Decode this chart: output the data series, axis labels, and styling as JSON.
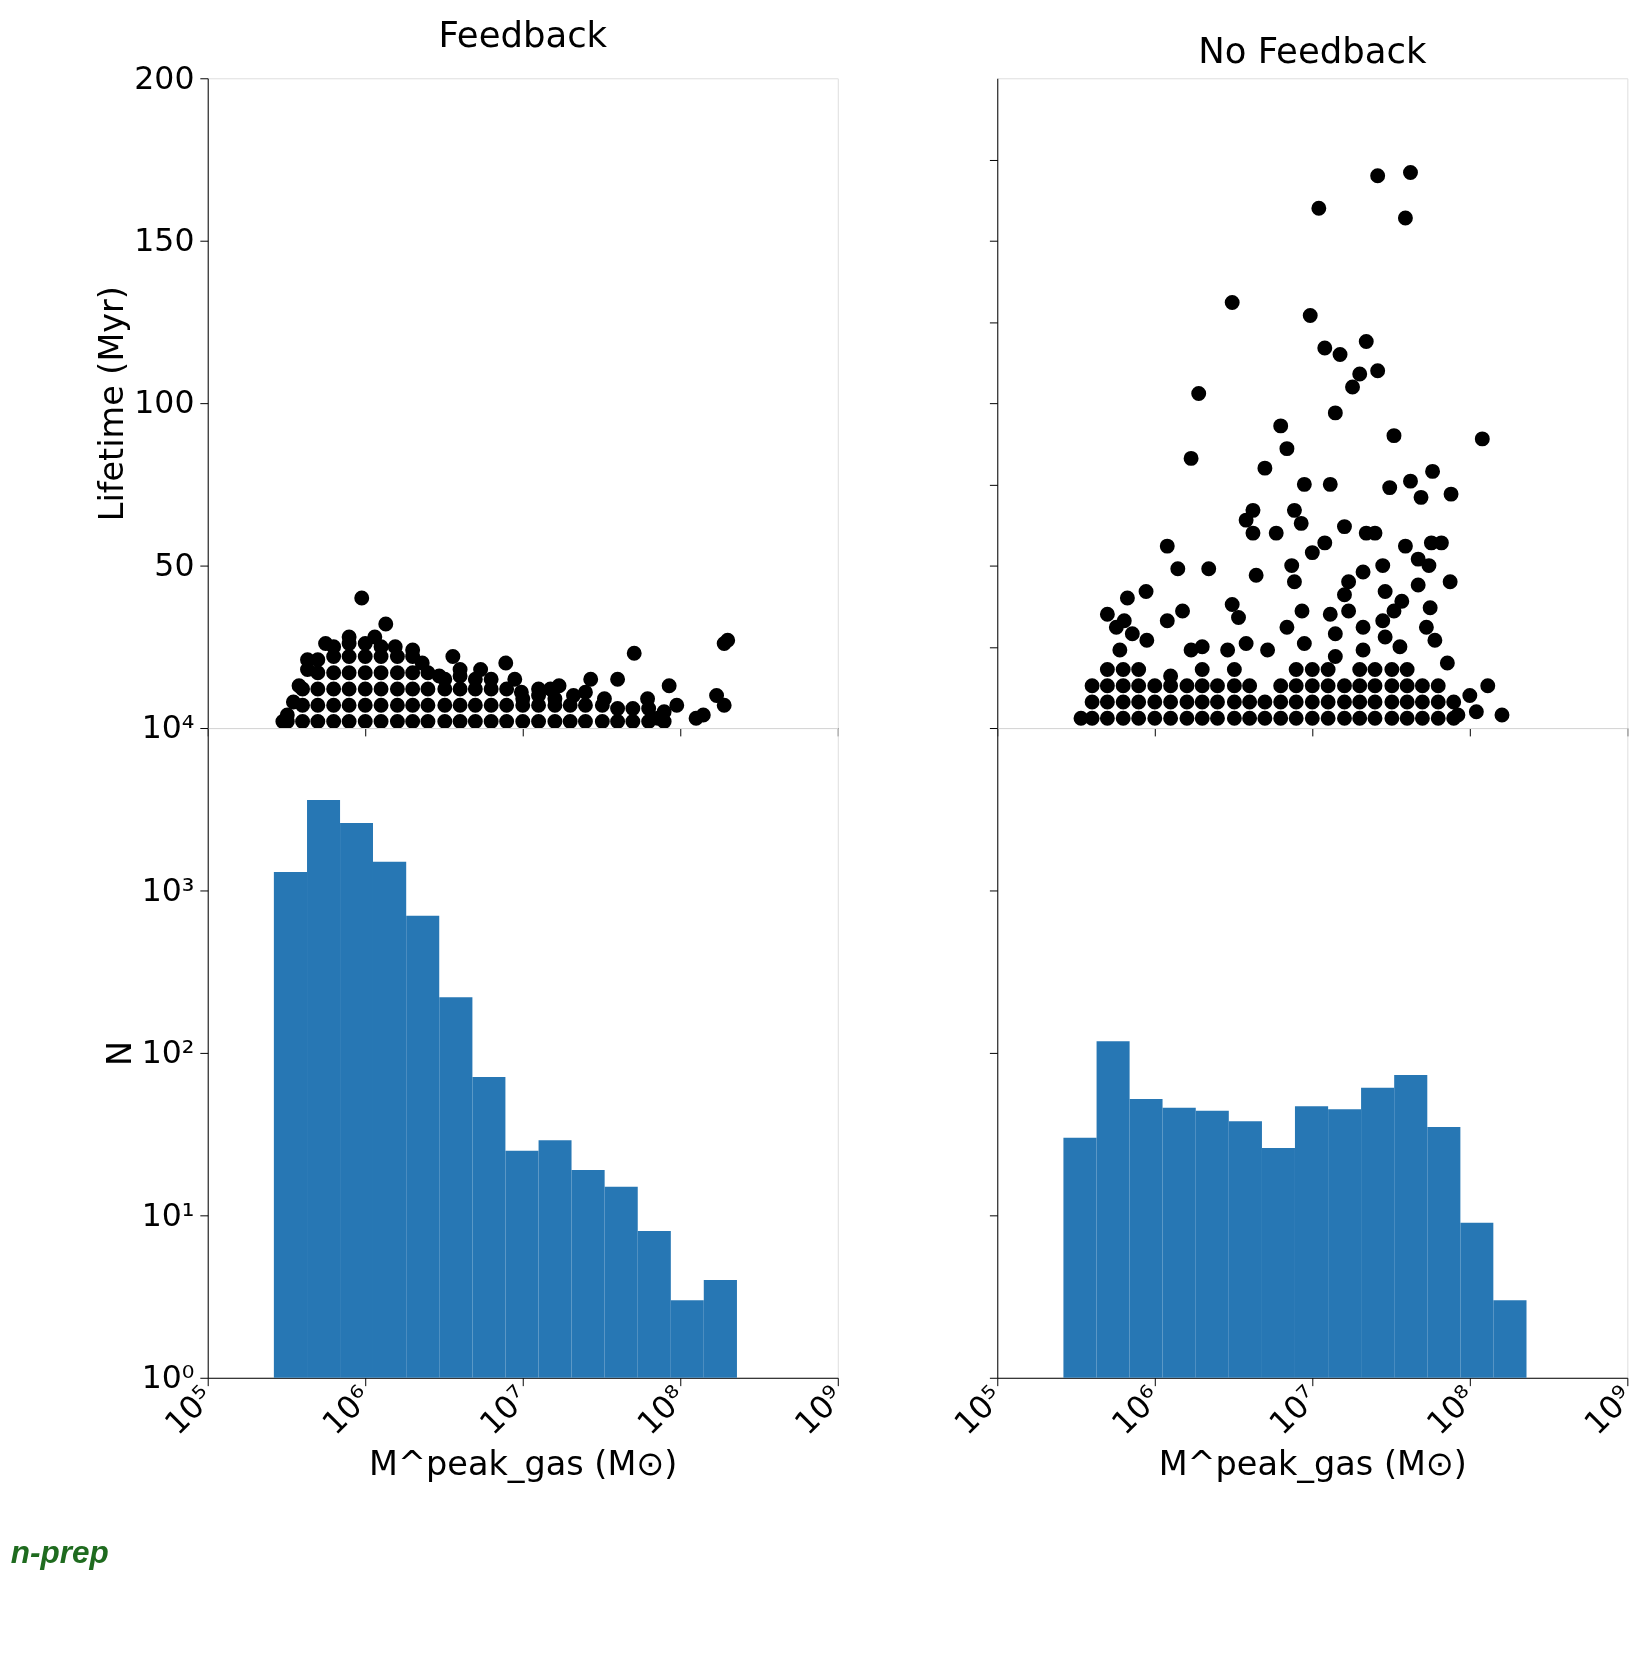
{
  "chart_data": [
    {
      "type": "scatter",
      "title": "Feedback",
      "ylabel": "Lifetime (Myr)",
      "log": "x",
      "xlim": [
        100000.0,
        1000000000.0
      ],
      "ylim": [
        0,
        200
      ],
      "tick_labels": "y",
      "xticks": [
        {
          "value": 100000.0,
          "label": null
        },
        {
          "value": 1000000.0,
          "label": null
        },
        {
          "value": 10000000.0,
          "label": null
        },
        {
          "value": 100000000.0,
          "label": null
        },
        {
          "value": 1000000000.0,
          "label": null
        }
      ],
      "yticks": [
        50,
        100,
        150,
        200
      ],
      "grid": false,
      "series": [
        {
          "color": "#000000",
          "x": [
            320000.0,
            320000.0,
            400000.0,
            400000.0,
            400000.0,
            500000.0,
            500000.0,
            500000.0,
            500000.0,
            500000.0,
            630000.0,
            630000.0,
            630000.0,
            630000.0,
            630000.0,
            630000.0,
            790000.0,
            790000.0,
            790000.0,
            790000.0,
            790000.0,
            790000.0,
            1000000.0,
            1000000.0,
            1000000.0,
            1000000.0,
            1000000.0,
            1000000.0,
            1260000.0,
            1260000.0,
            1260000.0,
            1260000.0,
            1260000.0,
            1260000.0,
            1600000.0,
            1600000.0,
            1600000.0,
            1600000.0,
            1600000.0,
            2000000.0,
            2000000.0,
            2000000.0,
            2000000.0,
            2000000.0,
            2500000.0,
            2500000.0,
            2500000.0,
            2500000.0,
            3200000.0,
            3200000.0,
            3200000.0,
            3200000.0,
            4000000.0,
            4000000.0,
            4000000.0,
            4000000.0,
            5000000.0,
            5000000.0,
            5000000.0,
            5000000.0,
            6300000.0,
            6300000.0,
            6300000.0,
            7900000.0,
            7900000.0,
            7900000.0,
            10000000.0,
            10000000.0,
            10000000.0,
            12600000.0,
            12600000.0,
            12600000.0,
            16000000.0,
            16000000.0,
            16000000.0,
            20000000.0,
            20000000.0,
            25000000.0,
            25000000.0,
            32000000.0,
            32000000.0,
            40000000.0,
            40000000.0,
            50000000.0,
            50000000.0,
            63000000.0,
            63000000.0,
            79000000.0,
            79000000.0,
            950000.0,
            1350000.0,
            200000000.0,
            190000000.0,
            51000000.0,
            3600000.0,
            7800000.0,
            5400000.0,
            27000000.0,
            40000000.0,
            85000000.0,
            170000000.0,
            190000000.0,
            140000000.0,
            12600000.0,
            17000000.0,
            8900000.0,
            300000.0,
            350000.0,
            380000.0,
            430000.0,
            430000.0,
            560000.0,
            790000.0,
            1150000.0,
            1550000.0,
            2000000.0,
            2300000.0,
            2950000.0,
            4000000.0,
            6300000.0,
            9800000.0,
            15000000.0,
            21000000.0,
            25000000.0,
            33000000.0,
            62000000.0,
            95000000.0,
            72000000.0,
            126000000.0
          ],
          "values": [
            2,
            4,
            2,
            7,
            12,
            2,
            7,
            12,
            17,
            21,
            2,
            7,
            12,
            17,
            22,
            25,
            2,
            7,
            12,
            17,
            22,
            26,
            2,
            7,
            12,
            17,
            22,
            26,
            2,
            7,
            12,
            17,
            22,
            25,
            2,
            7,
            12,
            17,
            22,
            2,
            7,
            12,
            17,
            22,
            2,
            7,
            12,
            17,
            2,
            7,
            12,
            15,
            2,
            7,
            12,
            16,
            2,
            7,
            12,
            15,
            2,
            7,
            12,
            2,
            7,
            12,
            2,
            7,
            9,
            2,
            7,
            10,
            2,
            7,
            9,
            2,
            7,
            2,
            7,
            2,
            7,
            2,
            6,
            2,
            6,
            2,
            6,
            2,
            5,
            40,
            32,
            27,
            26,
            23,
            22,
            20,
            18,
            15,
            15,
            13,
            10,
            7,
            4,
            12,
            13,
            15,
            2,
            8,
            13,
            18,
            21,
            26,
            28,
            28,
            25,
            24,
            20,
            16,
            18,
            15,
            11,
            12,
            10,
            11,
            9,
            9,
            7,
            3,
            3
          ]
        }
      ]
    },
    {
      "type": "scatter",
      "title": "No Feedback",
      "log": "x",
      "xlim": [
        100000.0,
        1000000000.0
      ],
      "ylim": [
        0,
        200
      ],
      "tick_labels": false,
      "xticks": [
        {
          "value": 100000.0,
          "label": null
        },
        {
          "value": 1000000.0,
          "label": null
        },
        {
          "value": 10000000.0,
          "label": null
        },
        {
          "value": 100000000.0,
          "label": null
        },
        {
          "value": 1000000000.0,
          "label": null
        }
      ],
      "yticks": [
        {
          "value": 25,
          "label": null
        },
        {
          "value": 50,
          "label": null
        },
        {
          "value": 75,
          "label": null
        },
        {
          "value": 100,
          "label": null
        },
        {
          "value": 125,
          "label": null
        },
        {
          "value": 150,
          "label": null
        },
        {
          "value": 175,
          "label": null
        }
      ],
      "grid": false,
      "series": [
        {
          "color": "#000000",
          "x": [
            400000.0,
            400000.0,
            400000.0,
            500000.0,
            500000.0,
            500000.0,
            500000.0,
            630000.0,
            630000.0,
            630000.0,
            630000.0,
            790000.0,
            790000.0,
            790000.0,
            790000.0,
            1000000.0,
            1000000.0,
            1000000.0,
            1260000.0,
            1260000.0,
            1260000.0,
            1260000.0,
            1600000.0,
            1600000.0,
            1600000.0,
            2000000.0,
            2000000.0,
            2000000.0,
            2000000.0,
            2500000.0,
            2500000.0,
            2500000.0,
            3200000.0,
            3200000.0,
            3200000.0,
            3200000.0,
            4000000.0,
            4000000.0,
            4000000.0,
            5000000.0,
            5000000.0,
            6300000.0,
            6300000.0,
            6300000.0,
            7900000.0,
            7900000.0,
            7900000.0,
            7900000.0,
            10000000.0,
            10000000.0,
            10000000.0,
            10000000.0,
            12600000.0,
            12600000.0,
            12600000.0,
            12600000.0,
            16000000.0,
            16000000.0,
            16000000.0,
            20000000.0,
            20000000.0,
            20000000.0,
            20000000.0,
            25000000.0,
            25000000.0,
            25000000.0,
            25000000.0,
            32000000.0,
            32000000.0,
            32000000.0,
            32000000.0,
            40000000.0,
            40000000.0,
            40000000.0,
            40000000.0,
            50000000.0,
            50000000.0,
            50000000.0,
            63000000.0,
            63000000.0,
            63000000.0,
            79000000.0,
            79000000.0,
            26000000.0,
            42000000.0,
            11000000.0,
            39000000.0,
            3100000.0,
            9700000.0,
            12000000.0,
            15000000.0,
            22000000.0,
            20000000.0,
            26000000.0,
            18000000.0,
            1900000.0,
            14000000.0,
            6300000.0,
            33000000.0,
            120000000.0,
            6900000.0,
            1700000.0,
            5000000.0,
            8900000.0,
            13000000.0,
            42000000.0,
            58000000.0,
            31000000.0,
            49000000.0,
            76000000.0,
            4200000.0,
            7700000.0,
            3800000.0,
            8500000.0,
            4200000.0,
            5900000.0,
            16000000.0,
            22000000.0,
            25000000.0,
            12000000.0,
            39000000.0,
            57000000.0,
            66000000.0,
            10000000.0,
            1200000.0,
            1400000.0,
            2200000.0,
            4400000.0,
            7400000.0,
            7700000.0,
            21000000.0,
            28000000.0,
            47000000.0,
            55000000.0,
            47000000.0,
            75000000.0,
            17000000.0,
            16000000.0,
            29000000.0,
            880000.0,
            670000.0,
            500000.0,
            1200000.0,
            1500000.0,
            3100000.0,
            3400000.0,
            6900000.0,
            8600000.0,
            13000000.0,
            17000000.0,
            21000000.0,
            37000000.0,
            56000000.0,
            53000000.0,
            60000000.0,
            28000000.0,
            33000000.0,
            640000.0,
            570000.0,
            720000.0,
            890000.0,
            600000.0,
            1700000.0,
            2000000.0,
            2900000.0,
            3800000.0,
            5200000.0,
            14000000.0,
            14000000.0,
            8900000.0,
            29000000.0,
            36000000.0,
            21000000.0,
            72000000.0,
            130000000.0,
            100000000.0,
            160000000.0,
            84000000.0,
            110000000.0,
            340000.0
          ],
          "values": [
            3,
            8,
            13,
            3,
            8,
            13,
            18,
            3,
            8,
            13,
            18,
            3,
            8,
            13,
            18,
            3,
            8,
            13,
            3,
            8,
            13,
            16,
            3,
            8,
            13,
            3,
            8,
            13,
            18,
            3,
            8,
            13,
            3,
            8,
            13,
            18,
            3,
            8,
            13,
            3,
            8,
            3,
            8,
            13,
            3,
            8,
            13,
            18,
            3,
            8,
            13,
            18,
            3,
            8,
            13,
            18,
            3,
            8,
            13,
            3,
            8,
            13,
            18,
            3,
            8,
            13,
            18,
            3,
            8,
            13,
            18,
            3,
            8,
            13,
            18,
            3,
            8,
            13,
            3,
            8,
            13,
            3,
            8,
            170,
            171,
            160,
            157,
            131,
            127,
            117,
            115,
            119,
            109,
            110,
            105,
            103,
            97,
            93,
            90,
            89,
            86,
            83,
            80,
            75,
            75,
            76,
            79,
            74,
            71,
            72,
            67,
            67,
            64,
            63,
            60,
            60,
            62,
            60,
            60,
            57,
            56,
            57,
            57,
            54,
            56,
            49,
            49,
            47,
            50,
            45,
            48,
            50,
            52,
            50,
            44,
            45,
            45,
            41,
            42,
            42,
            40,
            35,
            33,
            36,
            38,
            34,
            31,
            36,
            35,
            36,
            31,
            39,
            37,
            31,
            27,
            33,
            36,
            33,
            31,
            29,
            27,
            24,
            24,
            25,
            24,
            26,
            24,
            29,
            22,
            26,
            28,
            25,
            24,
            20,
            13,
            10,
            4,
            4,
            5,
            3
          ]
        }
      ]
    },
    {
      "type": "histogram",
      "ylabel": "N",
      "xlabel": "M^peak_gas (M⊙)",
      "log": "xy",
      "xlim": [
        100000.0,
        1000000000.0
      ],
      "ylim": [
        1,
        10000
      ],
      "color": "#2777b4",
      "xticks": [
        {
          "value": 100000.0,
          "label": "10⁵"
        },
        {
          "value": 1000000.0,
          "label": "10⁶"
        },
        {
          "value": 10000000.0,
          "label": "10⁷"
        },
        {
          "value": 100000000.0,
          "label": "10⁸"
        },
        {
          "value": 1000000000.0,
          "label": "10⁹"
        }
      ],
      "yticks": [
        {
          "value": 1,
          "label": "10⁰"
        },
        {
          "value": 10,
          "label": "10¹"
        },
        {
          "value": 100,
          "label": "10²"
        },
        {
          "value": 1000,
          "label": "10³"
        },
        {
          "value": 10000,
          "label": "10⁴"
        }
      ],
      "grid": false,
      "bins": [
        263000.0,
        427000.0,
        692000.0,
        1120000.0,
        1820000.0,
        2950000.0,
        4790000.0,
        7760000.0,
        12600000.0,
        20400000.0,
        33100000.0,
        53700000.0,
        87100000.0,
        141000000.0,
        229000000.0
      ],
      "values": [
        1300,
        3600,
        2600,
        1500,
        700,
        220,
        71,
        25,
        29,
        19,
        15,
        8,
        3,
        4
      ],
      "annotations": [
        "n-prep"
      ]
    },
    {
      "type": "histogram",
      "xlabel": "M^peak_gas (M⊙)",
      "log": "xy",
      "xlim": [
        100000.0,
        1000000000.0
      ],
      "ylim": [
        1,
        10000
      ],
      "color": "#2777b4",
      "tick_labels": "x",
      "xticks": [
        {
          "value": 100000.0,
          "label": "10⁵"
        },
        {
          "value": 1000000.0,
          "label": "10⁶"
        },
        {
          "value": 10000000.0,
          "label": "10⁷"
        },
        {
          "value": 100000000.0,
          "label": "10⁸"
        },
        {
          "value": 1000000000.0,
          "label": "10⁹"
        }
      ],
      "grid": false,
      "bins": [
        263000.0,
        427000.0,
        692000.0,
        1120000.0,
        1820000.0,
        2950000.0,
        4790000.0,
        7760000.0,
        12600000.0,
        20400000.0,
        33100000.0,
        53700000.0,
        87100000.0,
        141000000.0,
        229000000.0
      ],
      "values": [
        30,
        118,
        52,
        46,
        44,
        38,
        26,
        47,
        45,
        61,
        73,
        35,
        9,
        3
      ],
      "yticks": [
        {
          "value": 1,
          "label": null
        },
        {
          "value": 10,
          "label": null
        },
        {
          "value": 100,
          "label": null
        },
        {
          "value": 1000,
          "label": null
        },
        {
          "value": 10000,
          "label": null
        }
      ]
    }
  ]
}
